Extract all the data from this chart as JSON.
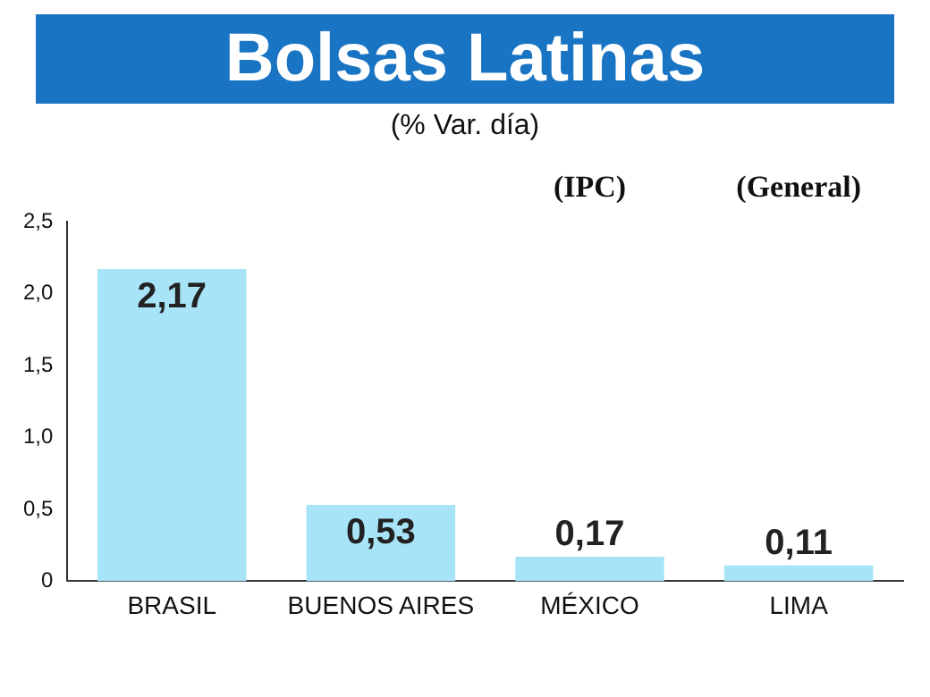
{
  "chart_data": {
    "type": "bar",
    "title": "Bolsas Latinas",
    "subtitle": "(% Var. día)",
    "categories": [
      "BRASIL",
      "BUENOS AIRES",
      "MÉXICO",
      "LIMA"
    ],
    "values": [
      2.17,
      0.53,
      0.17,
      0.11
    ],
    "value_labels": [
      "2,17",
      "0,53",
      "0,17",
      "0,11"
    ],
    "color": "#a8e4f8",
    "ylim": [
      0,
      2.5
    ],
    "yticks": [
      0,
      {
        "value": 0.5,
        "label": "0,5"
      },
      {
        "value": 1,
        "label": "1,0"
      },
      {
        "value": 1.5,
        "label": "1,5"
      },
      {
        "value": 2,
        "label": "2,0"
      },
      {
        "value": 2.5,
        "label": "2,5"
      }
    ],
    "annotations": [
      "(IPC)",
      "(General)"
    ],
    "grid": false,
    "legend": false
  }
}
